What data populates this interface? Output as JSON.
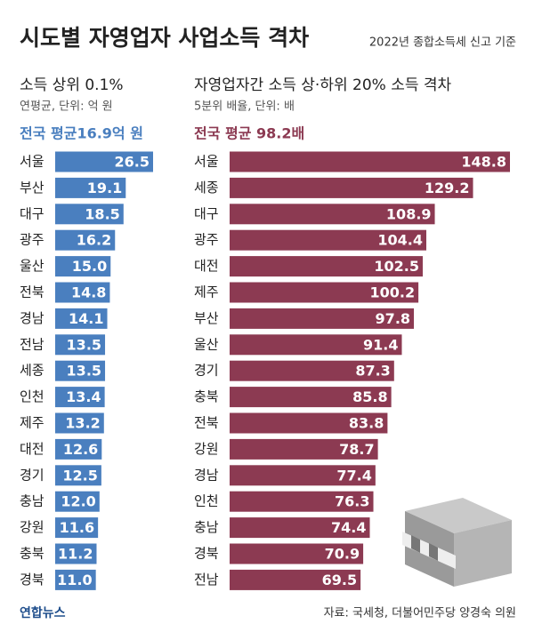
{
  "title": "시도별 자영업자 사업소득 격차",
  "subtitle": "2022년 종합소득세 신고 기준",
  "source": "자료: 국세청, 더불어민주당 양경숙 의원",
  "logo": "연합뉴스",
  "chart_data": [
    {
      "type": "bar",
      "orientation": "horizontal",
      "title": "소득 상위 0.1%",
      "subtitle": "연평균, 단위: 억 원",
      "annotation": "전국 평균16.9억 원",
      "categories": [
        "서울",
        "부산",
        "대구",
        "광주",
        "울산",
        "전북",
        "경남",
        "전남",
        "세종",
        "인천",
        "제주",
        "대전",
        "경기",
        "충남",
        "강원",
        "충북",
        "경북"
      ],
      "values": [
        26.5,
        19.1,
        18.5,
        16.2,
        15.0,
        14.8,
        14.1,
        13.5,
        13.5,
        13.4,
        13.2,
        12.6,
        12.5,
        12.0,
        11.6,
        11.2,
        11.0
      ],
      "value_labels": [
        "26.5",
        "19.1",
        "18.5",
        "16.2",
        "15.0",
        "14.8",
        "14.1",
        "13.5",
        "13.5",
        "13.4",
        "13.2",
        "12.6",
        "12.5",
        "12.0",
        "11.6",
        "11.2",
        "11.0"
      ],
      "color": "#4a7fbf"
    },
    {
      "type": "bar",
      "orientation": "horizontal",
      "title": "자영업자간 소득 상·하위 20% 소득 격차",
      "subtitle": "5분위 배율, 단위: 배",
      "annotation": "전국 평균 98.2배",
      "categories": [
        "서울",
        "세종",
        "대구",
        "광주",
        "대전",
        "제주",
        "부산",
        "울산",
        "경기",
        "충북",
        "전북",
        "강원",
        "경남",
        "인천",
        "충남",
        "경북",
        "전남"
      ],
      "values": [
        148.8,
        129.2,
        108.9,
        104.4,
        102.5,
        100.2,
        97.8,
        91.4,
        87.3,
        85.8,
        83.8,
        78.7,
        77.4,
        76.3,
        74.4,
        70.9,
        69.5
      ],
      "color": "#8c3a52"
    }
  ]
}
